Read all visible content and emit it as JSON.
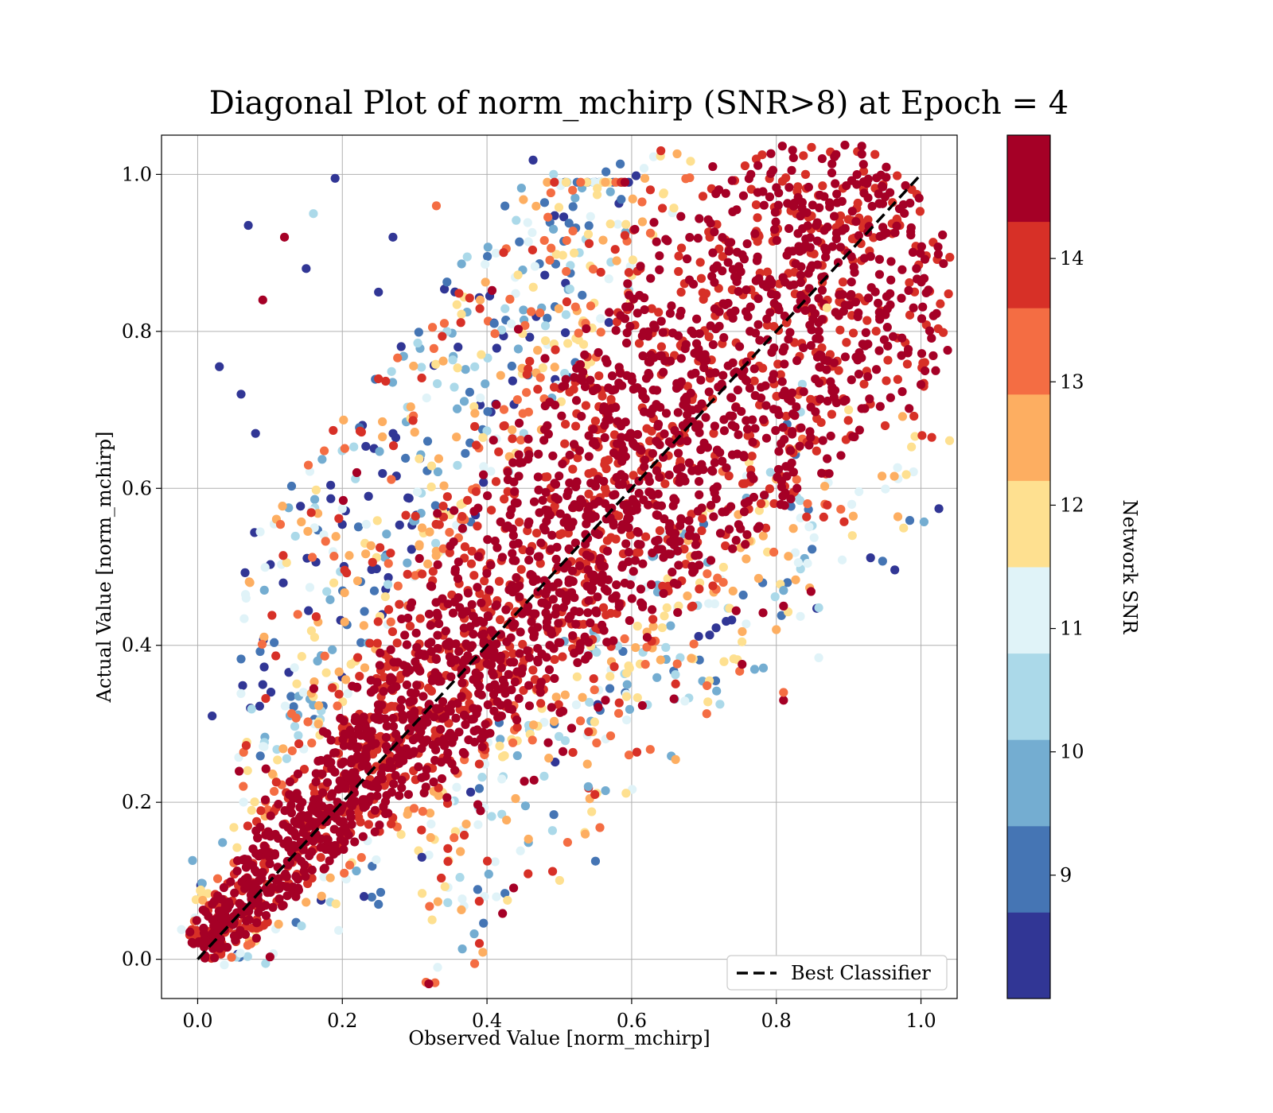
{
  "chart_data": {
    "type": "scatter",
    "title": "Diagonal Plot of norm_mchirp (SNR>8) at Epoch = 4",
    "xlabel": "Observed Value [norm_mchirp]",
    "ylabel": "Actual Value [norm_mchirp]",
    "xlim": [
      -0.05,
      1.05
    ],
    "ylim": [
      -0.05,
      1.05
    ],
    "x_ticks": [
      0.0,
      0.2,
      0.4,
      0.6,
      0.8,
      1.0
    ],
    "y_ticks": [
      0.0,
      0.2,
      0.4,
      0.6,
      0.8,
      1.0
    ],
    "x_tick_labels": [
      "0.0",
      "0.2",
      "0.4",
      "0.6",
      "0.8",
      "1.0"
    ],
    "y_tick_labels": [
      "0.0",
      "0.2",
      "0.4",
      "0.6",
      "0.8",
      "1.0"
    ],
    "grid": true,
    "color_variable": "Network SNR",
    "reference_line": {
      "name": "Best Classifier",
      "x": [
        0.0,
        1.0
      ],
      "y": [
        0.0,
        1.0
      ],
      "style": "dashed",
      "color": "#000000"
    },
    "legend": {
      "placement": "lower-right",
      "entries": [
        "Best Classifier"
      ]
    },
    "colorbar": {
      "label": "Network SNR",
      "range": [
        8,
        15
      ],
      "ticks": [
        9,
        10,
        11,
        12,
        13,
        14
      ],
      "tick_labels": [
        "9",
        "10",
        "11",
        "12",
        "13",
        "14"
      ],
      "colors": [
        "#313695",
        "#4575b4",
        "#74add1",
        "#abd9e9",
        "#e0f3f8",
        "#fee090",
        "#fdae61",
        "#f46d43",
        "#d73027",
        "#a50026"
      ]
    },
    "points": [
      [
        0.1,
        0.003,
        14.8
      ],
      [
        0.02,
        0.31,
        8.6
      ],
      [
        0.19,
        0.995,
        8.4
      ],
      [
        0.03,
        0.755,
        8.3
      ],
      [
        0.07,
        0.935,
        8.5
      ],
      [
        0.55,
        0.125,
        9.2
      ],
      [
        0.81,
        0.33,
        14.5
      ],
      [
        0.81,
        0.34,
        13.6
      ],
      [
        0.81,
        0.45,
        14.6
      ],
      [
        0.81,
        0.47,
        9.4
      ],
      [
        0.9,
        0.7,
        11.8
      ],
      [
        0.33,
        0.96,
        13.4
      ],
      [
        0.25,
        0.85,
        8.4
      ],
      [
        0.41,
        0.81,
        9.0
      ],
      [
        0.54,
        0.22,
        9.4
      ],
      [
        0.36,
        0.78,
        8.4
      ],
      [
        0.22,
        0.62,
        14.4
      ],
      [
        0.08,
        0.67,
        8.6
      ],
      [
        0.06,
        0.72,
        8.3
      ],
      [
        0.09,
        0.35,
        8.2
      ],
      [
        0.27,
        0.92,
        8.5
      ],
      [
        0.12,
        0.92,
        14.3
      ],
      [
        0.16,
        0.95,
        10.5
      ],
      [
        0.09,
        0.84,
        14.8
      ],
      [
        0.15,
        0.88,
        8.5
      ],
      [
        0.23,
        0.08,
        8.3
      ],
      [
        0.25,
        0.07,
        9.3
      ],
      [
        0.31,
        0.13,
        8.6
      ],
      [
        0.86,
        0.77,
        14.6
      ],
      [
        0.88,
        0.76,
        14.7
      ],
      [
        0.87,
        0.83,
        11.5
      ],
      [
        0.8,
        0.42,
        12.3
      ]
    ],
    "point_distribution": [
      {
        "description": "dense core along diagonal",
        "snr_range": [
          13.5,
          15
        ]
      },
      {
        "description": "upper-left scatter above diagonal",
        "snr_range": [
          8,
          12.5
        ]
      },
      {
        "description": "lower-right scatter below diagonal",
        "snr_range": [
          9,
          14
        ]
      }
    ]
  }
}
